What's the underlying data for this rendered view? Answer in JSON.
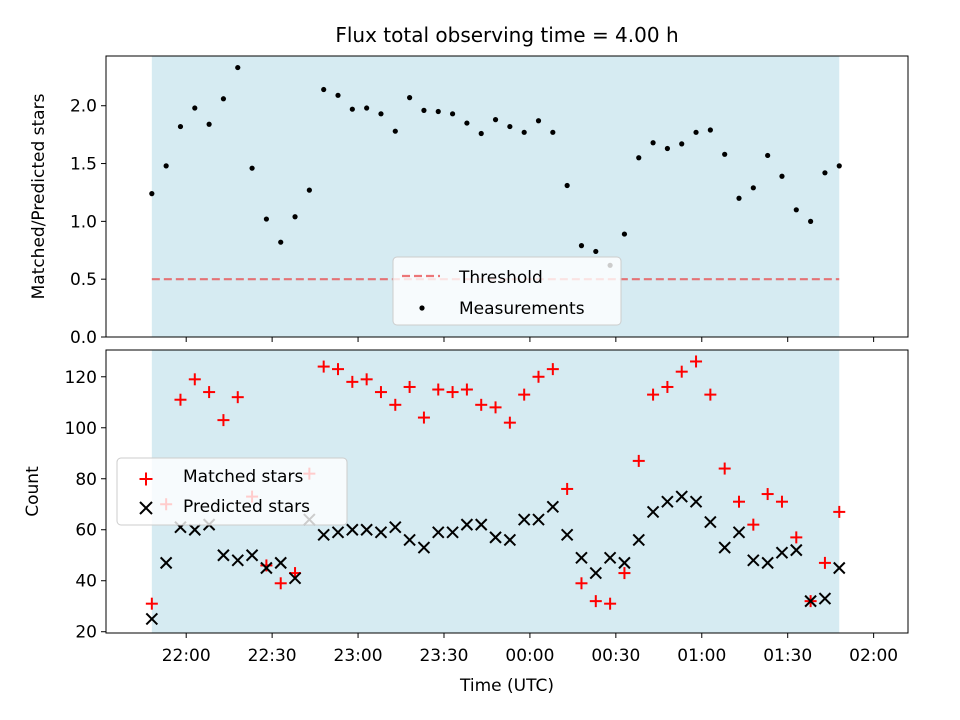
{
  "title": "Flux total observing time = 4.00 h",
  "colors": {
    "observing_band": "#add8e6",
    "threshold": "#e8494b",
    "measurements": "#000000",
    "matched": "#ff0000",
    "predicted": "#000000"
  },
  "chart_data": [
    {
      "type": "scatter",
      "ylabel": "Matched/Predicted stars",
      "ylim": [
        0,
        2.43
      ],
      "yticks": [
        0.0,
        0.5,
        1.0,
        1.5,
        2.0
      ],
      "ytick_labels": [
        "0.0",
        "0.5",
        "1.0",
        "1.5",
        "2.0"
      ],
      "xlim_minutes": [
        -28,
        252
      ],
      "observing_window_minutes": [
        -12,
        228
      ],
      "threshold": 0.5,
      "legend": {
        "position": "lower-center",
        "entries": [
          "Threshold",
          "Measurements"
        ]
      },
      "series": [
        {
          "name": "Measurements",
          "x": [
            -12,
            -7,
            -2,
            3,
            8,
            13,
            18,
            23,
            28,
            33,
            38,
            43,
            48,
            53,
            58,
            63,
            68,
            73,
            78,
            83,
            88,
            93,
            98,
            103,
            108,
            113,
            118,
            123,
            128,
            133,
            138,
            143,
            148,
            153,
            158,
            163,
            168,
            173,
            178,
            183,
            188,
            193,
            198,
            203,
            208,
            213,
            218,
            223,
            228
          ],
          "y": [
            1.24,
            1.48,
            1.82,
            1.98,
            1.84,
            2.06,
            2.33,
            1.46,
            1.02,
            0.82,
            1.04,
            1.27,
            2.14,
            2.09,
            1.97,
            1.98,
            1.93,
            1.78,
            2.07,
            1.96,
            1.95,
            1.93,
            1.85,
            1.76,
            1.88,
            1.82,
            1.77,
            1.87,
            1.77,
            1.31,
            0.79,
            0.74,
            0.62,
            0.89,
            1.55,
            1.68,
            1.63,
            1.67,
            1.77,
            1.79,
            1.58,
            1.2,
            1.29,
            1.57,
            1.39,
            1.1,
            1.0,
            1.42,
            1.48
          ]
        }
      ]
    },
    {
      "type": "scatter",
      "ylabel": "Count",
      "xlabel": "Time (UTC)",
      "ylim": [
        19.5,
        130.5
      ],
      "yticks": [
        20,
        40,
        60,
        80,
        100,
        120
      ],
      "ytick_labels": [
        "20",
        "40",
        "60",
        "80",
        "100",
        "120"
      ],
      "xlim_minutes": [
        -28,
        252
      ],
      "xticks_minutes": [
        0,
        30,
        60,
        90,
        120,
        150,
        180,
        210,
        240
      ],
      "xtick_labels": [
        "22:00",
        "22:30",
        "23:00",
        "23:30",
        "00:00",
        "00:30",
        "01:00",
        "01:30",
        "02:00"
      ],
      "observing_window_minutes": [
        -12,
        228
      ],
      "legend": {
        "position": "center-left",
        "entries": [
          "Matched stars",
          "Predicted stars"
        ]
      },
      "series": [
        {
          "name": "Matched stars",
          "x": [
            -12,
            -7,
            -2,
            3,
            8,
            13,
            18,
            23,
            28,
            33,
            38,
            43,
            48,
            53,
            58,
            63,
            68,
            73,
            78,
            83,
            88,
            93,
            98,
            103,
            108,
            113,
            118,
            123,
            128,
            133,
            138,
            143,
            148,
            153,
            158,
            163,
            168,
            173,
            178,
            183,
            188,
            193,
            198,
            203,
            208,
            213,
            218,
            223,
            228
          ],
          "y": [
            31,
            70,
            111,
            119,
            114,
            103,
            112,
            73,
            46,
            39,
            43,
            82,
            124,
            123,
            118,
            119,
            114,
            109,
            116,
            104,
            115,
            114,
            115,
            109,
            108,
            102,
            113,
            120,
            123,
            76,
            39,
            32,
            31,
            43,
            87,
            113,
            116,
            122,
            126,
            113,
            84,
            71,
            62,
            74,
            71,
            57,
            32,
            47,
            67
          ]
        },
        {
          "name": "Predicted stars",
          "x": [
            -12,
            -7,
            -2,
            3,
            8,
            13,
            18,
            23,
            28,
            33,
            38,
            43,
            48,
            53,
            58,
            63,
            68,
            73,
            78,
            83,
            88,
            93,
            98,
            103,
            108,
            113,
            118,
            123,
            128,
            133,
            138,
            143,
            148,
            153,
            158,
            163,
            168,
            173,
            178,
            183,
            188,
            193,
            198,
            203,
            208,
            213,
            218,
            223,
            228
          ],
          "y": [
            25,
            47,
            61,
            60,
            62,
            50,
            48,
            50,
            45,
            47,
            41,
            64,
            58,
            59,
            60,
            60,
            59,
            61,
            56,
            53,
            59,
            59,
            62,
            62,
            57,
            56,
            64,
            64,
            69,
            58,
            49,
            43,
            49,
            47,
            56,
            67,
            71,
            73,
            71,
            63,
            53,
            59,
            48,
            47,
            51,
            52,
            32,
            33,
            45
          ]
        }
      ]
    }
  ]
}
